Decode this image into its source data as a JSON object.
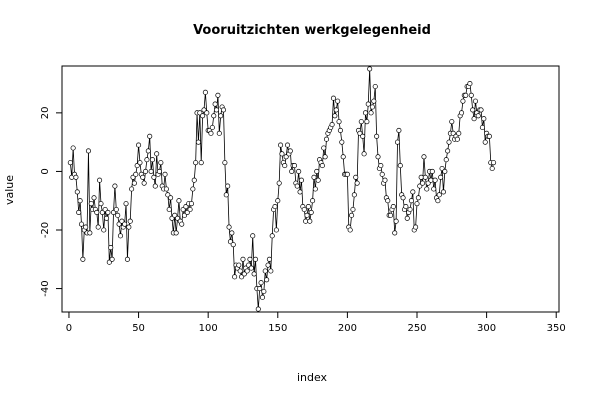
{
  "chart_data": {
    "type": "line",
    "title": "Vooruitzichten werkgelegenheid",
    "xlabel": "index",
    "ylabel": "value",
    "xlim": [
      -5,
      352
    ],
    "ylim": [
      -48,
      36
    ],
    "xticks": [
      0,
      50,
      100,
      150,
      200,
      250,
      300,
      350
    ],
    "yticks": [
      -40,
      -20,
      0,
      20
    ],
    "markers": "open-circle",
    "colors": {
      "line": "#000000",
      "background": "#ffffff"
    },
    "series": [
      {
        "values": [
          3,
          -2,
          8,
          -1,
          -2,
          -7,
          -14,
          -10,
          -18,
          -30,
          -20,
          -19,
          -21,
          7,
          -21,
          -11,
          -13,
          -9,
          -13,
          -14,
          -19,
          -3,
          -11,
          -14,
          -20,
          -13,
          -16,
          -14,
          -31,
          -26,
          -30,
          -14,
          -5,
          -13,
          -15,
          -18,
          -22,
          -17,
          -19,
          -18,
          -11,
          -30,
          -19,
          -17,
          -6,
          -2,
          -4,
          -1,
          2,
          9,
          3,
          -1,
          -2,
          -4,
          0,
          4,
          7,
          12,
          0,
          4,
          -2,
          -5,
          6,
          -1,
          0,
          3,
          -5,
          -6,
          -1,
          -6,
          -8,
          -13,
          -9,
          -16,
          -21,
          -15,
          -21,
          -16,
          -10,
          -17,
          -18,
          -13,
          -15,
          -12,
          -14,
          -11,
          -13,
          -11,
          -6,
          -3,
          3,
          20,
          10,
          20,
          3,
          19,
          21,
          27,
          20,
          14,
          14,
          13,
          15,
          19,
          23,
          21,
          26,
          13,
          19,
          22,
          21,
          3,
          -8,
          -5,
          -19,
          -24,
          -21,
          -25,
          -36,
          -32,
          -33,
          -32,
          -34,
          -36,
          -30,
          -35,
          -33,
          -34,
          -32,
          -30,
          -33,
          -22,
          -35,
          -30,
          -40,
          -47,
          -40,
          -38,
          -43,
          -41,
          -34,
          -37,
          -32,
          -30,
          -34,
          -22,
          -13,
          -12,
          -20,
          -10,
          -4,
          9,
          6,
          3,
          2,
          5,
          9,
          6,
          7,
          0,
          2,
          2,
          -4,
          -5,
          0,
          -7,
          -3,
          -12,
          -13,
          -17,
          -15,
          -12,
          -17,
          -14,
          -10,
          -2,
          -6,
          0,
          -3,
          4,
          3,
          2,
          8,
          5,
          11,
          13,
          14,
          15,
          16,
          25,
          19,
          21,
          24,
          17,
          14,
          10,
          5,
          -1,
          -1,
          -1,
          -19,
          -20,
          -15,
          -13,
          -8,
          -2,
          -4,
          14,
          13,
          17,
          12,
          6,
          20,
          17,
          23,
          35,
          20,
          22,
          24,
          29,
          12,
          5,
          1,
          2,
          -1,
          -4,
          -3,
          -9,
          -10,
          -15,
          -15,
          -13,
          -12,
          -21,
          -17,
          10,
          14,
          2,
          -8,
          -9,
          -13,
          -12,
          -16,
          -14,
          -13,
          -10,
          -7,
          -20,
          -19,
          -11,
          -9,
          -5,
          -2,
          -4,
          5,
          -2,
          -6,
          -4,
          0,
          -3,
          0,
          -6,
          -3,
          -9,
          -10,
          -8,
          -2,
          1,
          -7,
          0,
          4,
          7,
          10,
          13,
          17,
          13,
          11,
          12,
          11,
          13,
          19,
          20,
          24,
          26,
          26,
          29,
          29,
          30,
          26,
          21,
          18,
          24,
          20,
          19,
          21,
          21,
          15,
          18,
          10,
          13,
          12,
          12,
          3,
          1,
          3
        ]
      }
    ]
  }
}
